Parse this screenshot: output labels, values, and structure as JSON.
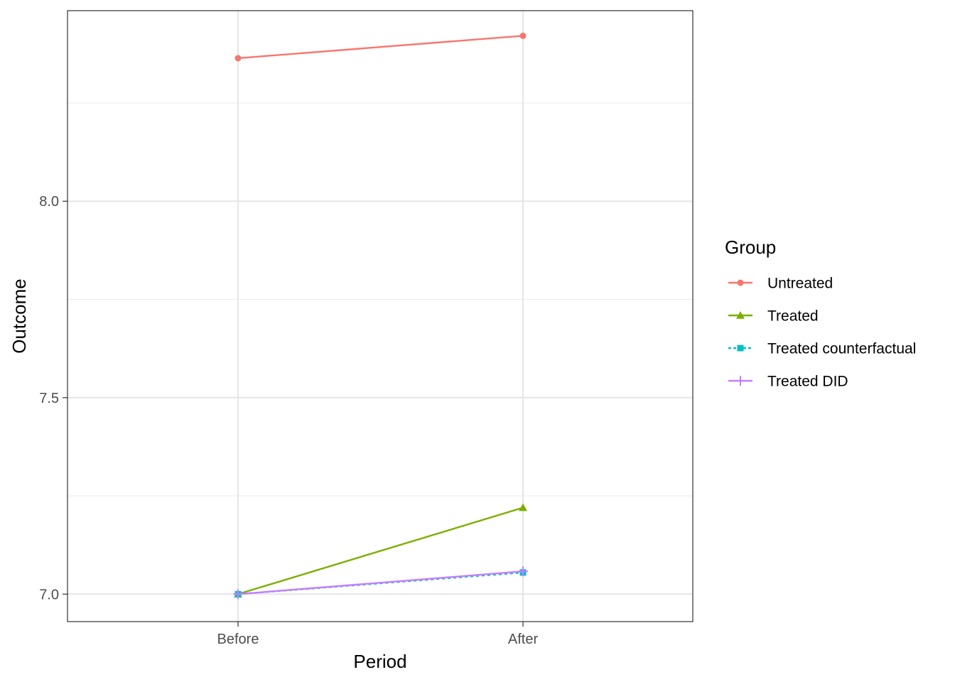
{
  "chart_data": {
    "type": "line",
    "categories": [
      "Before",
      "After"
    ],
    "xlabel": "Period",
    "ylabel": "Outcome",
    "ylim": [
      6.93,
      8.485
    ],
    "y_ticks": [
      7.0,
      7.5,
      8.0
    ],
    "y_tick_labels": [
      "7.0",
      "7.5",
      "8.0"
    ],
    "grid": true,
    "legend": {
      "title": "Group",
      "placement": "right"
    },
    "series": [
      {
        "name": "Untreated",
        "values": [
          8.364,
          8.421
        ],
        "color": "#F8766D",
        "marker": "circle",
        "dash": "solid"
      },
      {
        "name": "Treated",
        "values": [
          7.0,
          7.22
        ],
        "color": "#7CAE00",
        "marker": "triangle",
        "dash": "solid"
      },
      {
        "name": "Treated counterfactual",
        "values": [
          7.0,
          7.055
        ],
        "color": "#00BFC4",
        "marker": "square",
        "dash": "dashed"
      },
      {
        "name": "Treated DID",
        "values": [
          7.0,
          7.058
        ],
        "color": "#C77CFF",
        "marker": "plus",
        "dash": "solid"
      }
    ]
  }
}
